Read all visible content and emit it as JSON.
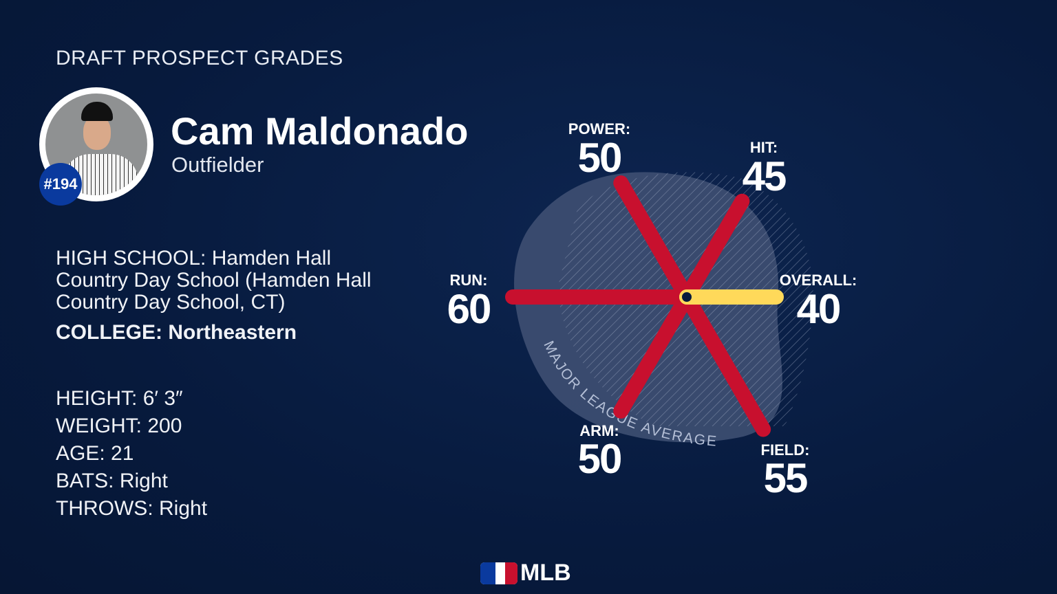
{
  "header": {
    "title": "DRAFT PROSPECT GRADES"
  },
  "player": {
    "name": "Cam Maldonado",
    "position": "Outfielder",
    "rank": "#194",
    "high_school_label": "HIGH SCHOOL:",
    "high_school": "Hamden Hall Country Day School (Hamden Hall Country Day School, CT)",
    "college_label": "COLLEGE:",
    "college": "Northeastern",
    "height_label": "HEIGHT:",
    "height": "6′ 3″",
    "weight_label": "WEIGHT:",
    "weight": "200",
    "age_label": "AGE:",
    "age": "21",
    "bats_label": "BATS:",
    "bats": "Right",
    "throws_label": "THROWS:",
    "throws": "Right"
  },
  "chart_data": {
    "type": "radial-bar",
    "categories": [
      "POWER:",
      "HIT:",
      "OVERALL:",
      "FIELD:",
      "ARM:",
      "RUN:"
    ],
    "values": [
      50,
      45,
      40,
      55,
      50,
      60
    ],
    "reference_label": "MAJOR LEAGUE AVERAGE",
    "colors": {
      "tool": "#c8102e",
      "overall": "#ffd95a",
      "average_fill": "#3e4f72"
    }
  },
  "footer": {
    "logo": "MLB"
  }
}
